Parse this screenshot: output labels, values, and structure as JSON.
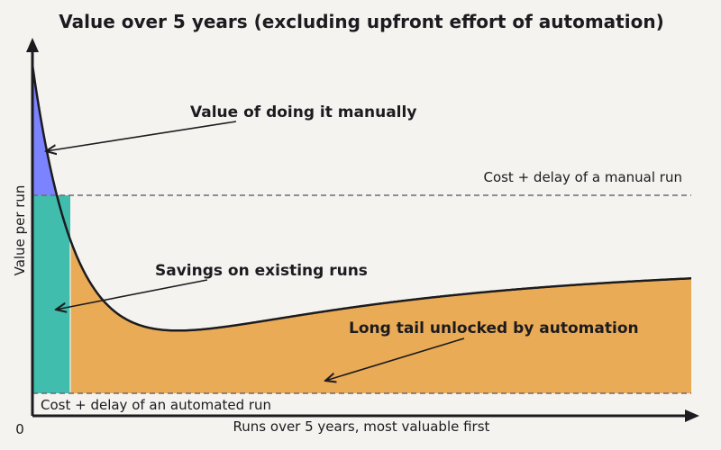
{
  "title": "Value over 5 years (excluding upfront effort of automation)",
  "y_axis_label": "Value per run",
  "x_axis_label": "Runs over 5 years, most valuable first",
  "origin_label": "0",
  "reference_lines": {
    "manual": "Cost + delay of a manual run",
    "automated": "Cost + delay of an automated run"
  },
  "annotations": {
    "manual_value": "Value of doing it manually",
    "savings": "Savings on existing runs",
    "long_tail": "Long tail unlocked by automation"
  },
  "colors": {
    "background": "#f4f3ef",
    "manual_value_region": "#7b83ff",
    "savings_region": "#40bdad",
    "long_tail_region": "#eaab56",
    "curve": "#1c1b1f",
    "reference_line": "#6d6a78"
  }
}
